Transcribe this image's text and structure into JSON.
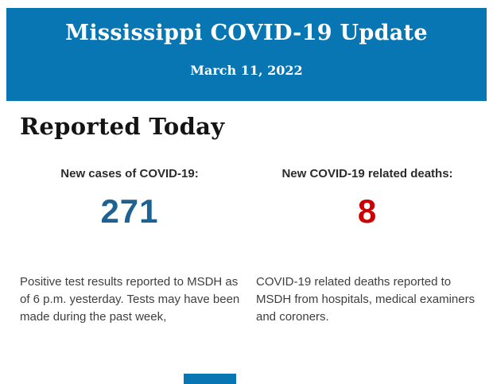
{
  "colors": {
    "header_bg": "#0776b3",
    "cases_value": "#1e6294",
    "deaths_value": "#cc0000",
    "footer_bar": "#0776b3"
  },
  "header": {
    "title": "Mississippi COVID-19 Update",
    "date": "March 11, 2022"
  },
  "main": {
    "section_title": "Reported Today",
    "stats": [
      {
        "label": "New cases of COVID-19:",
        "value": "271",
        "value_color": "#1e6294",
        "description": "Positive test results reported to MSDH as of 6 p.m. yesterday. Tests may have been made during the past week,"
      },
      {
        "label": "New COVID-19 related deaths:",
        "value": "8",
        "value_color": "#cc0000",
        "description": "COVID-19 related deaths reported to MSDH from hospitals, medical examiners and coroners."
      }
    ]
  }
}
